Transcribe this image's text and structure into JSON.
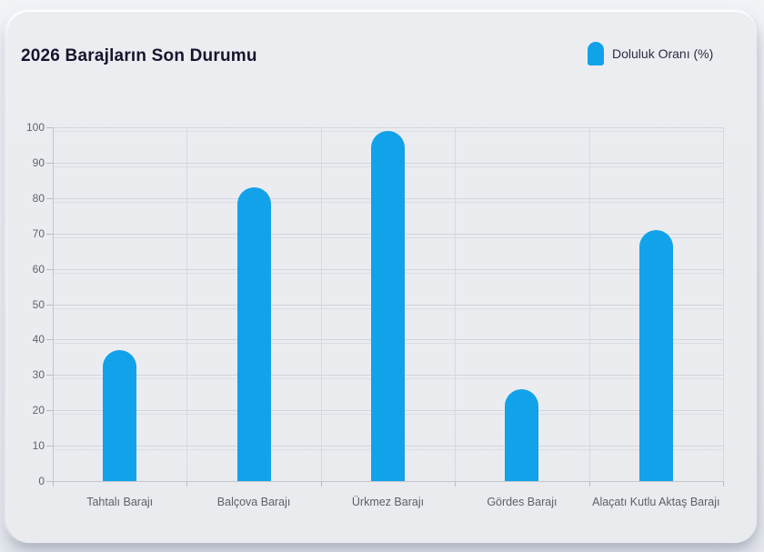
{
  "header": {
    "title": "2026 Barajların Son Durumu"
  },
  "legend": {
    "label": "Doluluk Oranı (%)"
  },
  "chart_data": {
    "type": "bar",
    "title": "2026 Barajların Son Durumu",
    "categories": [
      "Tahtalı Barajı",
      "Balçova Barajı",
      "Ürkmez Barajı",
      "Gördes Barajı",
      "Alaçatı Kutlu Aktaş Barajı"
    ],
    "series": [
      {
        "name": "Doluluk Oranı (%)",
        "values": [
          37,
          83,
          99,
          26,
          71
        ],
        "color": "#12a2e9"
      }
    ],
    "xlabel": "",
    "ylabel": "",
    "ylim": [
      0,
      100
    ],
    "y_ticks": [
      0,
      10,
      20,
      30,
      40,
      50,
      60,
      70,
      80,
      90,
      100
    ],
    "grid": "horizontal-major-plus-category-boundaries",
    "legend_position": "top-right"
  },
  "colors": {
    "bar": "#12a2e9",
    "page_background": "#eef0f4",
    "card_background": "#e9ebef",
    "gridline": "#d2d5db",
    "axis_line": "#c2c6cd",
    "tick_label": "#5f646b",
    "title_text": "#15162d",
    "legend_text": "#2c2c42"
  }
}
